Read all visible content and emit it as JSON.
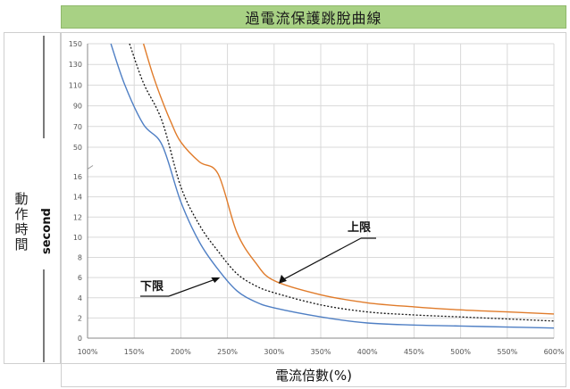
{
  "title": "過電流保護跳脫曲線",
  "ylabel_cn": "動作時間",
  "ylabel_en": "second",
  "xlabel": "電流倍數(%)",
  "colors": {
    "upper": "#e07b2a",
    "lower": "#4f7fc4",
    "middle": "#111111",
    "grid": "#d9d9d9",
    "title_bg": "#a8d184"
  },
  "chart_data": {
    "type": "line",
    "x_unit": "%",
    "x_ticks": [
      "100%",
      "150%",
      "200%",
      "250%",
      "300%",
      "350%",
      "400%",
      "450%",
      "500%",
      "550%",
      "600%"
    ],
    "y_ticks": [
      "0",
      "2",
      "4",
      "6",
      "8",
      "10",
      "12",
      "14",
      "16",
      "50",
      "70",
      "90",
      "110",
      "130",
      "150"
    ],
    "xlim": [
      100,
      600
    ],
    "y_scale": "broken axis (0–16 linear, 50–150 linear)",
    "annotations": [
      {
        "text": "上限",
        "series": "upper"
      },
      {
        "text": "下限",
        "series": "lower"
      }
    ],
    "series": [
      {
        "key": "upper",
        "style": "solid orange",
        "x": [
          160,
          170,
          180,
          190,
          200,
          220,
          240,
          260,
          280,
          300,
          350,
          400,
          450,
          500,
          550,
          600
        ],
        "y": [
          150,
          120,
          95,
          73,
          55,
          33,
          19,
          10.5,
          7.5,
          5.7,
          4.3,
          3.5,
          3.1,
          2.8,
          2.6,
          2.4
        ]
      },
      {
        "key": "middle",
        "style": "dotted black",
        "x": [
          145,
          160,
          180,
          200,
          220,
          240,
          260,
          280,
          300,
          350,
          400,
          450,
          500,
          550,
          600
        ],
        "y": [
          150,
          112,
          75,
          15,
          11.2,
          8.6,
          6.4,
          5.2,
          4.5,
          3.3,
          2.6,
          2.3,
          2.1,
          1.9,
          1.7
        ]
      },
      {
        "key": "lower",
        "style": "solid blue",
        "x": [
          125,
          140,
          160,
          180,
          200,
          220,
          240,
          260,
          280,
          300,
          350,
          400,
          450,
          500,
          550,
          600
        ],
        "y": [
          150,
          110,
          72,
          52,
          13.5,
          9.5,
          6.8,
          4.7,
          3.6,
          3.0,
          2.1,
          1.5,
          1.3,
          1.2,
          1.1,
          1.0
        ]
      }
    ]
  }
}
